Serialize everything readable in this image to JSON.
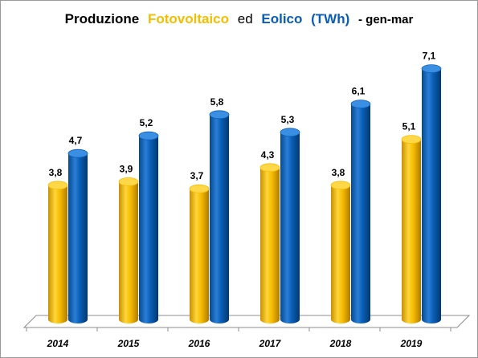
{
  "colors": {
    "fotovoltaico": "#F5BD00",
    "eolico": "#0A5DB5",
    "floor": "#FFFFFF",
    "grid": "#8C8C8C"
  },
  "chart_data": {
    "type": "bar",
    "title_parts": {
      "p1": "Produzione",
      "p2": "Fotovoltaico",
      "p3": "ed",
      "p4": "Eolico",
      "p5": "(TWh)",
      "p6": "- gen-mar"
    },
    "categories": [
      "2014",
      "2015",
      "2016",
      "2017",
      "2018",
      "2019"
    ],
    "series": [
      {
        "name": "Fotovoltaico",
        "values": [
          3.8,
          3.9,
          3.7,
          4.3,
          3.8,
          5.1
        ],
        "labels": [
          "3,8",
          "3,9",
          "3,7",
          "4,3",
          "3,8",
          "5,1"
        ]
      },
      {
        "name": "Eolico",
        "values": [
          4.7,
          5.2,
          5.8,
          5.3,
          6.1,
          7.1
        ],
        "labels": [
          "4,7",
          "5,2",
          "5,8",
          "5,3",
          "6,1",
          "7,1"
        ]
      }
    ],
    "ylim": [
      0,
      7.5
    ],
    "grid": false,
    "legend": "none",
    "shape": "cylinder-3d"
  }
}
